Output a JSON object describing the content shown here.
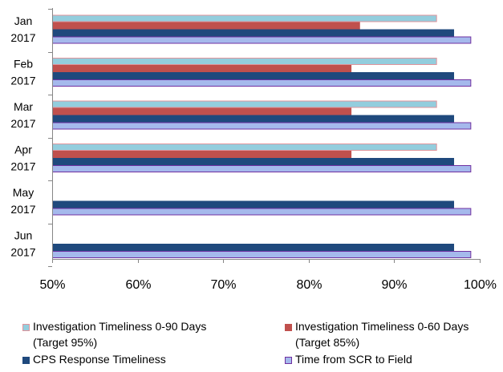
{
  "chart_data": {
    "type": "bar",
    "orientation": "horizontal",
    "categories": [
      [
        "Jan",
        "2017"
      ],
      [
        "Feb",
        "2017"
      ],
      [
        "Mar",
        "2017"
      ],
      [
        "Apr",
        "2017"
      ],
      [
        "May",
        "2017"
      ],
      [
        "Jun",
        "2017"
      ]
    ],
    "series": [
      {
        "name": "Investigation Timeliness 0-90 Days (Target 95%)",
        "values": [
          95,
          95,
          95,
          95,
          null,
          null
        ],
        "color": "#93cddd",
        "border": "#e0949b"
      },
      {
        "name": "Investigation Timeliness 0-60 Days (Target 85%)",
        "values": [
          86,
          85,
          85,
          85,
          null,
          null
        ],
        "color": "#c0504d",
        "border": "#c0504d"
      },
      {
        "name": "CPS Response Timeliness",
        "values": [
          97,
          97,
          97,
          97,
          97,
          97
        ],
        "color": "#1f497d",
        "border": "#1f497d"
      },
      {
        "name": "Time from SCR to Field",
        "values": [
          99,
          99,
          99,
          99,
          99,
          99
        ],
        "color": "#a5b9ec",
        "border": "#7030a0"
      }
    ],
    "x_ticks": [
      "50%",
      "60%",
      "70%",
      "80%",
      "90%",
      "100%"
    ],
    "xlim": [
      50,
      100
    ],
    "legend_position": "bottom",
    "grid": false
  },
  "legend": {
    "items": [
      {
        "lines": [
          "Investigation Timeliness 0-90 Days",
          "(Target 95%)"
        ],
        "color": "#93cddd",
        "border": "#e0949b"
      },
      {
        "lines": [
          "Investigation Timeliness 0-60 Days",
          "(Target 85%)"
        ],
        "color": "#c0504d",
        "border": "#c0504d"
      },
      {
        "lines": [
          "CPS Response Timeliness"
        ],
        "color": "#1f497d",
        "border": "#1f497d"
      },
      {
        "lines": [
          "Time from SCR to Field"
        ],
        "color": "#a5b9ec",
        "border": "#7030a0"
      }
    ]
  }
}
